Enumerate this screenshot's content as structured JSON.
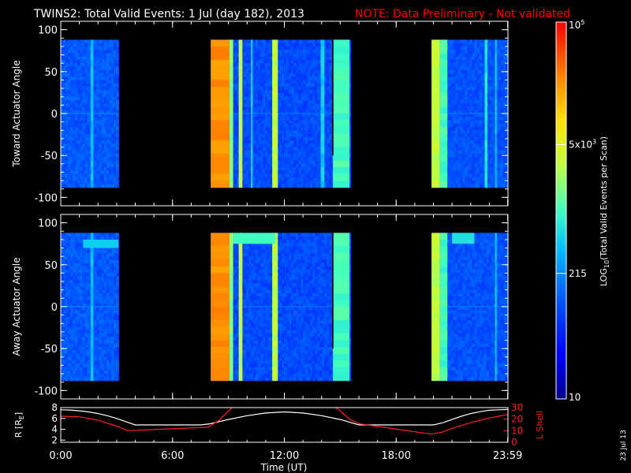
{
  "header": {
    "title": "TWINS2: Total Valid Events:  1 Jul (day 182), 2013",
    "note": "NOTE: Data Preliminary - Not validated"
  },
  "colors": {
    "background": "#000000",
    "foreground": "#ffffff",
    "note": "#ff0000",
    "r_line": "#ffffff",
    "lshell_line": "#ff2020"
  },
  "chart_data": [
    {
      "type": "heatmap",
      "name": "toward",
      "ylabel": "Toward Actuator Angle",
      "ylim": [
        -110,
        110
      ],
      "yticks": [
        "100",
        "50",
        "0",
        "-50",
        "-100"
      ],
      "xlim": [
        0,
        24
      ],
      "angle_range": [
        -88,
        88
      ],
      "data_blocks": [
        {
          "start": 0.0,
          "end": 3.1,
          "level": 0.26
        },
        {
          "start": 8.05,
          "end": 15.55,
          "level": 0.24
        },
        {
          "start": 19.9,
          "end": 24.0,
          "level": 0.25
        }
      ],
      "bands": [
        {
          "start": 1.6,
          "end": 1.75,
          "level": 0.4
        },
        {
          "start": 8.05,
          "end": 9.05,
          "level": 0.84
        },
        {
          "start": 9.05,
          "end": 9.25,
          "level": 0.56
        },
        {
          "start": 9.55,
          "end": 9.75,
          "level": 0.62
        },
        {
          "start": 10.2,
          "end": 10.3,
          "level": 0.42
        },
        {
          "start": 11.35,
          "end": 11.65,
          "level": 0.62
        },
        {
          "start": 13.95,
          "end": 14.15,
          "level": 0.42
        },
        {
          "start": 14.6,
          "end": 15.5,
          "level": 0.5
        },
        {
          "start": 19.9,
          "end": 20.35,
          "level": 0.62
        },
        {
          "start": 20.35,
          "end": 20.75,
          "level": 0.5
        },
        {
          "start": 22.75,
          "end": 22.9,
          "level": 0.45
        },
        {
          "start": 23.3,
          "end": 23.4,
          "level": 0.4
        }
      ],
      "marker_line": {
        "x": 14.6,
        "y_from": 88,
        "y_to": -50
      }
    },
    {
      "type": "heatmap",
      "name": "away",
      "ylabel": "Away Actuator Angle",
      "ylim": [
        -110,
        110
      ],
      "yticks": [
        "100",
        "50",
        "0",
        "-50",
        "-100"
      ],
      "xlim": [
        0,
        24
      ],
      "angle_range": [
        -88,
        88
      ],
      "data_blocks": [
        {
          "start": 0.0,
          "end": 3.1,
          "level": 0.26
        },
        {
          "start": 8.05,
          "end": 15.55,
          "level": 0.24
        },
        {
          "start": 19.9,
          "end": 24.0,
          "level": 0.25
        }
      ],
      "bands": [
        {
          "start": 1.6,
          "end": 1.75,
          "level": 0.4
        },
        {
          "start": 8.05,
          "end": 9.05,
          "level": 0.84
        },
        {
          "start": 9.05,
          "end": 9.25,
          "level": 0.56
        },
        {
          "start": 9.55,
          "end": 9.75,
          "level": 0.62
        },
        {
          "start": 11.35,
          "end": 11.65,
          "level": 0.62
        },
        {
          "start": 14.6,
          "end": 15.5,
          "level": 0.5
        },
        {
          "start": 19.9,
          "end": 20.35,
          "level": 0.62
        },
        {
          "start": 20.35,
          "end": 20.75,
          "level": 0.5
        },
        {
          "start": 23.3,
          "end": 23.4,
          "level": 0.4
        }
      ],
      "patches": [
        {
          "start": 1.2,
          "end": 3.1,
          "a_from": 70,
          "a_to": 80,
          "level": 0.42
        },
        {
          "start": 9.25,
          "end": 11.5,
          "a_from": 75,
          "a_to": 88,
          "level": 0.5
        },
        {
          "start": 21.0,
          "end": 22.2,
          "a_from": 75,
          "a_to": 88,
          "level": 0.45
        }
      ],
      "marker_line": {
        "x": 14.6,
        "y_from": 88,
        "y_to": -50
      }
    },
    {
      "type": "line",
      "name": "orbit",
      "xlabel": "Time (UT)",
      "xlim": [
        0,
        24
      ],
      "xticks": [
        {
          "value": 0,
          "label": "0:00"
        },
        {
          "value": 6,
          "label": "6:00"
        },
        {
          "value": 12,
          "label": "12:00"
        },
        {
          "value": 18,
          "label": "18:00"
        },
        {
          "value": 23.983,
          "label": "23:59"
        }
      ],
      "left_axis": {
        "label": "R [R",
        "label_sub": "E",
        "label_end": "]",
        "ylim": [
          1.6,
          8
        ],
        "ticks": [
          "8",
          "6",
          "4",
          "2"
        ],
        "tick_values": [
          8,
          6,
          4,
          2
        ]
      },
      "right_axis": {
        "label": "L Shell",
        "ylim": [
          0,
          30
        ],
        "ticks": [
          "30",
          "20",
          "10",
          "0"
        ],
        "tick_values": [
          30,
          20,
          10,
          0
        ]
      },
      "series": [
        {
          "name": "R [RE]",
          "axis": "left",
          "x": [
            0,
            0.5,
            1,
            1.5,
            2,
            2.5,
            3,
            3.5,
            4,
            5,
            6,
            7,
            7.5,
            8,
            9,
            10,
            11,
            12,
            13,
            14,
            15,
            15.5,
            16,
            17,
            18,
            19,
            20,
            20.5,
            21,
            21.5,
            22,
            22.5,
            23,
            23.5,
            24
          ],
          "y": [
            7.6,
            7.55,
            7.4,
            7.2,
            6.9,
            6.5,
            6.0,
            5.4,
            4.8,
            4.8,
            4.8,
            4.8,
            4.8,
            5.0,
            5.8,
            6.5,
            7.0,
            7.2,
            7.0,
            6.5,
            5.8,
            5.3,
            4.8,
            4.8,
            4.8,
            4.8,
            4.8,
            5.2,
            5.8,
            6.4,
            6.9,
            7.25,
            7.5,
            7.6,
            7.65
          ]
        },
        {
          "name": "L Shell",
          "axis": "right",
          "x": [
            0,
            1,
            2,
            3,
            3.6,
            5,
            7.9,
            8.5,
            9.0,
            9.4,
            14.5,
            15.0,
            15.5,
            16,
            19.9,
            20.5,
            21,
            22,
            23,
            24
          ],
          "y": [
            22.5,
            22,
            19,
            14,
            10,
            11,
            13,
            19,
            27,
            33,
            33,
            27,
            20,
            16,
            7,
            9,
            12,
            17,
            21,
            24
          ]
        }
      ]
    }
  ],
  "colorbar": {
    "label_main": "LOG",
    "label_sub": "10",
    "label_rest": "(Total Valid Events per Scan)",
    "range": [
      10,
      100000
    ],
    "log_scale": true,
    "ticks": [
      {
        "value": 100000,
        "base": "10",
        "exp": "5"
      },
      {
        "value": 5000,
        "base": "5x10",
        "exp": "3"
      },
      {
        "value": 215,
        "base": "215",
        "exp": ""
      },
      {
        "value": 10,
        "base": "10",
        "exp": ""
      }
    ]
  },
  "footer": {
    "date_stamp": "23 Jul 13"
  }
}
